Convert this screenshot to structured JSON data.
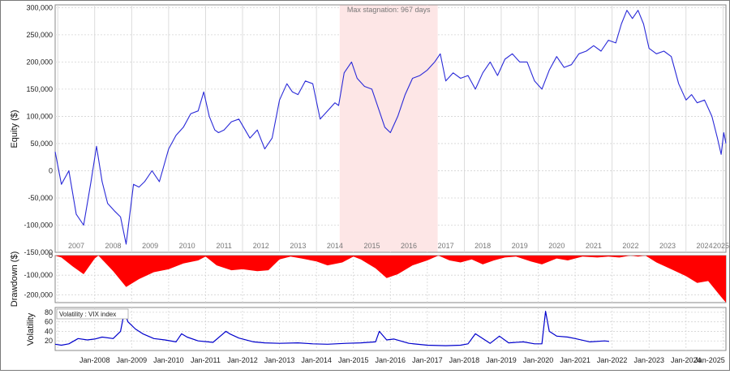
{
  "colors": {
    "equity_line": "#2a2ad8",
    "drawdown_fill": "#ff0000",
    "vix_line": "#0000cc",
    "stagnation_band": "#fde6e6",
    "grid": "#d4d4d4"
  },
  "chart_data": [
    {
      "type": "line",
      "ylabel": "Equity ($)",
      "ylim": [
        -150000,
        305000
      ],
      "yticks": [
        300000,
        250000,
        200000,
        150000,
        100000,
        50000,
        0,
        -50000,
        -100000,
        -150000
      ],
      "ytick_labels": [
        "300,000",
        "250,000",
        "200,000",
        "150,000",
        "100,000",
        "50,000",
        "0",
        "-50,000",
        "-100,000",
        "-150,000"
      ],
      "year_labels": [
        "2007",
        "2008",
        "2009",
        "2010",
        "2011",
        "2012",
        "2013",
        "2014",
        "2015",
        "2016",
        "2017",
        "2018",
        "2019",
        "2020",
        "2021",
        "2022",
        "2023",
        "2024",
        "2025"
      ],
      "grid": true,
      "annotation": {
        "text": "Max stagnation: 967 days",
        "x_start": 2014.63,
        "x_end": 2017.28
      },
      "x": [
        2006.93,
        2007.1,
        2007.3,
        2007.5,
        2007.7,
        2007.9,
        2008.05,
        2008.2,
        2008.35,
        2008.55,
        2008.7,
        2008.85,
        2009.05,
        2009.2,
        2009.35,
        2009.55,
        2009.75,
        2010.0,
        2010.2,
        2010.4,
        2010.6,
        2010.8,
        2010.95,
        2011.1,
        2011.25,
        2011.35,
        2011.5,
        2011.7,
        2011.9,
        2012.2,
        2012.4,
        2012.6,
        2012.8,
        2013.0,
        2013.2,
        2013.35,
        2013.5,
        2013.7,
        2013.9,
        2014.1,
        2014.3,
        2014.5,
        2014.6,
        2014.75,
        2014.95,
        2015.1,
        2015.3,
        2015.5,
        2015.7,
        2015.85,
        2016.0,
        2016.2,
        2016.4,
        2016.6,
        2016.8,
        2017.0,
        2017.2,
        2017.35,
        2017.5,
        2017.7,
        2017.9,
        2018.1,
        2018.3,
        2018.5,
        2018.7,
        2018.9,
        2019.1,
        2019.3,
        2019.5,
        2019.7,
        2019.9,
        2020.1,
        2020.3,
        2020.5,
        2020.7,
        2020.9,
        2021.1,
        2021.3,
        2021.5,
        2021.7,
        2021.9,
        2022.1,
        2022.25,
        2022.4,
        2022.55,
        2022.7,
        2022.85,
        2023.0,
        2023.2,
        2023.4,
        2023.6,
        2023.8,
        2024.0,
        2024.15,
        2024.3,
        2024.5,
        2024.7,
        2024.85,
        2024.95,
        2025.02,
        2025.08
      ],
      "y": [
        35000,
        -25000,
        0,
        -80000,
        -100000,
        -20000,
        45000,
        -20000,
        -60000,
        -75000,
        -85000,
        -135000,
        -25000,
        -30000,
        -20000,
        0,
        -20000,
        40000,
        65000,
        80000,
        105000,
        110000,
        145000,
        100000,
        75000,
        70000,
        75000,
        90000,
        95000,
        60000,
        75000,
        40000,
        60000,
        130000,
        160000,
        145000,
        140000,
        165000,
        160000,
        95000,
        110000,
        125000,
        120000,
        180000,
        200000,
        170000,
        155000,
        150000,
        110000,
        80000,
        70000,
        100000,
        140000,
        170000,
        175000,
        185000,
        200000,
        215000,
        165000,
        180000,
        170000,
        175000,
        150000,
        180000,
        200000,
        175000,
        205000,
        215000,
        200000,
        200000,
        165000,
        150000,
        185000,
        210000,
        190000,
        195000,
        215000,
        220000,
        230000,
        220000,
        240000,
        235000,
        270000,
        295000,
        280000,
        295000,
        270000,
        225000,
        215000,
        220000,
        210000,
        160000,
        130000,
        140000,
        125000,
        130000,
        100000,
        60000,
        30000,
        70000,
        50000
      ]
    },
    {
      "type": "area",
      "ylabel": "Drawdown ($)",
      "ylim": [
        -240000,
        0
      ],
      "yticks": [
        0,
        -100000,
        -200000
      ],
      "ytick_labels": [
        "0",
        "-100,000",
        "-200,000"
      ],
      "grid": true,
      "x": [
        2006.93,
        2007.1,
        2007.4,
        2007.7,
        2008.0,
        2008.1,
        2008.5,
        2008.85,
        2009.2,
        2009.6,
        2010.0,
        2010.4,
        2010.8,
        2011.0,
        2011.3,
        2011.7,
        2012.0,
        2012.4,
        2012.7,
        2013.0,
        2013.3,
        2013.6,
        2014.0,
        2014.3,
        2014.7,
        2015.0,
        2015.2,
        2015.6,
        2015.9,
        2016.2,
        2016.6,
        2017.0,
        2017.3,
        2017.6,
        2017.9,
        2018.2,
        2018.5,
        2018.8,
        2019.1,
        2019.4,
        2019.8,
        2020.1,
        2020.5,
        2020.8,
        2021.2,
        2021.6,
        2021.9,
        2022.2,
        2022.5,
        2022.7,
        2022.9,
        2023.2,
        2023.6,
        2024.0,
        2024.3,
        2024.6,
        2024.9,
        2025.08
      ],
      "y": [
        0,
        -10000,
        -55000,
        -95000,
        -15000,
        0,
        -80000,
        -160000,
        -120000,
        -85000,
        -70000,
        -40000,
        -25000,
        -5000,
        -50000,
        -75000,
        -70000,
        -80000,
        -75000,
        -20000,
        -5000,
        -15000,
        -30000,
        -50000,
        -35000,
        -5000,
        -20000,
        -65000,
        -115000,
        -95000,
        -50000,
        -25000,
        0,
        -25000,
        -35000,
        -20000,
        -45000,
        -25000,
        -10000,
        -5000,
        -30000,
        -45000,
        -15000,
        -25000,
        -5000,
        -10000,
        -5000,
        -10000,
        0,
        -5000,
        0,
        -35000,
        -70000,
        -105000,
        -140000,
        -130000,
        -200000,
        -240000
      ]
    },
    {
      "type": "line",
      "ylabel": "Volatility",
      "legend": "Volatility : VIX index",
      "ylim": [
        0,
        90
      ],
      "yticks": [
        20,
        40,
        60,
        80
      ],
      "ytick_labels": [
        "20",
        "40",
        "60",
        "80"
      ],
      "x_labels": [
        "Jan-2008",
        "Jan-2009",
        "Jan-2010",
        "Jan-2011",
        "Jan-2012",
        "Jan-2013",
        "Jan-2014",
        "Jan-2015",
        "Jan-2016",
        "Jan-2017",
        "Jan-2018",
        "Jan-2019",
        "Jan-2020",
        "Jan-2021",
        "Jan-2022",
        "Jan-2023",
        "Jan-2024",
        "Jan-2025"
      ],
      "grid": true,
      "x": [
        2006.93,
        2007.1,
        2007.3,
        2007.55,
        2007.8,
        2008.0,
        2008.2,
        2008.5,
        2008.7,
        2008.8,
        2008.9,
        2009.1,
        2009.3,
        2009.6,
        2009.9,
        2010.2,
        2010.35,
        2010.5,
        2010.8,
        2011.2,
        2011.55,
        2011.65,
        2011.9,
        2012.3,
        2012.6,
        2013.0,
        2013.5,
        2013.9,
        2014.3,
        2014.8,
        2015.2,
        2015.6,
        2015.7,
        2015.9,
        2016.1,
        2016.5,
        2017.0,
        2017.5,
        2017.9,
        2018.1,
        2018.3,
        2018.7,
        2018.95,
        2019.2,
        2019.6,
        2019.9,
        2020.1,
        2020.2,
        2020.3,
        2020.5,
        2020.8,
        2021.0,
        2021.4,
        2021.8,
        2021.92
      ],
      "y": [
        13,
        11,
        14,
        25,
        22,
        24,
        28,
        25,
        40,
        80,
        60,
        45,
        35,
        25,
        22,
        18,
        35,
        28,
        20,
        17,
        40,
        35,
        26,
        18,
        16,
        15,
        16,
        14,
        13,
        15,
        16,
        18,
        40,
        22,
        24,
        15,
        11,
        10,
        11,
        14,
        35,
        15,
        30,
        16,
        18,
        14,
        14,
        82,
        40,
        30,
        28,
        25,
        18,
        20,
        19
      ]
    }
  ]
}
